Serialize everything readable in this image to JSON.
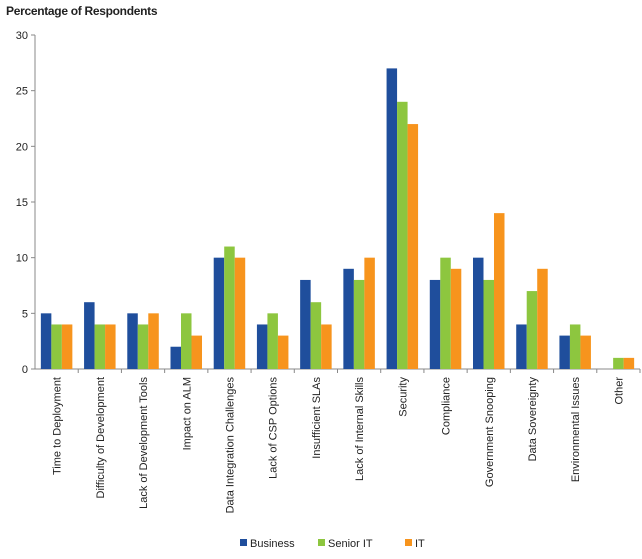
{
  "chart_data": {
    "type": "bar",
    "ylabel": "Percentage of Respondents",
    "xlabel": "",
    "ylim": [
      0,
      30
    ],
    "yticks": [
      "0",
      "5",
      "10",
      "15",
      "20",
      "25",
      "30"
    ],
    "grid": false,
    "legend_position": "bottom-center",
    "categories": [
      "Time to Deployment",
      "Difficulty of Development",
      "Lack of Development Tools",
      "Impact on ALM",
      "Data Integration Challenges",
      "Lack of CSP Options",
      "Insufficient SLAs",
      "Lack of Internal Skills",
      "Security",
      "Compliance",
      "Government Snooping",
      "Data Sovereignty",
      "Environmental Issues",
      "Other"
    ],
    "series": [
      {
        "name": "Business",
        "color": "#1f4e9c",
        "values": [
          5,
          6,
          5,
          2,
          10,
          4,
          8,
          9,
          27,
          8,
          10,
          4,
          3,
          0
        ]
      },
      {
        "name": "Senior IT",
        "color": "#8dc63f",
        "values": [
          4,
          4,
          4,
          5,
          11,
          5,
          6,
          8,
          24,
          10,
          8,
          7,
          4,
          1
        ]
      },
      {
        "name": "IT",
        "color": "#f7941d",
        "values": [
          4,
          4,
          5,
          3,
          10,
          3,
          4,
          10,
          22,
          9,
          14,
          9,
          3,
          1
        ]
      }
    ]
  }
}
